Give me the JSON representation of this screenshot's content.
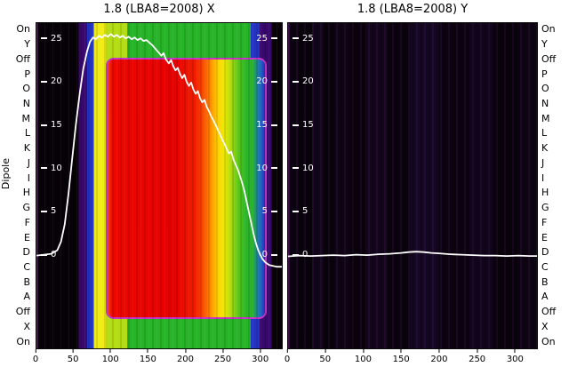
{
  "figure": {
    "y_axis_label": "Dipole"
  },
  "chart_data": [
    {
      "type": "heatmap",
      "title": "1.8 (LBA8=2008) X",
      "x_range": [
        0,
        330
      ],
      "x_ticks": [
        0,
        50,
        100,
        150,
        200,
        250,
        300
      ],
      "y_ticks": [
        25,
        20,
        15,
        10,
        5,
        0
      ],
      "y_tick_sides": [
        "left",
        "right"
      ],
      "row_side": "left",
      "row_axis_label": "Dipole",
      "row_labels": [
        "On",
        "Y",
        "Off",
        "P",
        "O",
        "N",
        "M",
        "L",
        "K",
        "J",
        "I",
        "H",
        "G",
        "F",
        "E",
        "D",
        "C",
        "B",
        "A",
        "Off",
        "X",
        "On"
      ],
      "y_scale": {
        "zero_frac": 0.712,
        "unit_frac": 0.0266
      },
      "bands": [
        {
          "x0": 0,
          "x1": 2,
          "color": "#5a1068"
        },
        {
          "x0": 2,
          "x1": 57,
          "color": "#070108"
        },
        {
          "x0": 57,
          "x1": 68,
          "color": "#38086c"
        },
        {
          "x0": 68,
          "x1": 77,
          "color": "#2334c4"
        },
        {
          "x0": 77,
          "x1": 93,
          "color": "#f0ec18"
        },
        {
          "x0": 93,
          "x1": 122,
          "color": "#b4dc14"
        },
        {
          "x0": 122,
          "x1": 288,
          "color": "#28b428"
        },
        {
          "x0": 288,
          "x1": 300,
          "color": "#2334c4"
        },
        {
          "x0": 300,
          "x1": 316,
          "color": "#38086c"
        },
        {
          "x0": 316,
          "x1": 330,
          "color": "#070108"
        }
      ],
      "block": {
        "x0": 93,
        "x1": 305,
        "top_frac": 0.106,
        "bottom_frac": 0.899,
        "border_color": "#c832c8",
        "corner_radius": 9,
        "gradient": [
          [
            0,
            "#ff3c00"
          ],
          [
            3,
            "#ec0800"
          ],
          [
            42,
            "#e60000"
          ],
          [
            56,
            "#f01e00"
          ],
          [
            62,
            "#ff5a00"
          ],
          [
            66,
            "#ff9600"
          ],
          [
            70,
            "#ffd200"
          ],
          [
            74,
            "#f0e800"
          ],
          [
            78,
            "#b4dc14"
          ],
          [
            83,
            "#5ac814"
          ],
          [
            88,
            "#2db42d"
          ],
          [
            92,
            "#28b428"
          ],
          [
            96,
            "#1e78b4"
          ],
          [
            100,
            "#2334c4"
          ]
        ]
      },
      "line": {
        "color": "#ffffff",
        "points": [
          [
            0,
            -0.1
          ],
          [
            10,
            0
          ],
          [
            20,
            0.1
          ],
          [
            28,
            0.5
          ],
          [
            33,
            1.5
          ],
          [
            38,
            3.5
          ],
          [
            43,
            7
          ],
          [
            48,
            11
          ],
          [
            53,
            15
          ],
          [
            58,
            18.5
          ],
          [
            63,
            21.5
          ],
          [
            68,
            23.5
          ],
          [
            72,
            24.6
          ],
          [
            76,
            25.1
          ],
          [
            80,
            24.9
          ],
          [
            84,
            25.3
          ],
          [
            88,
            25.1
          ],
          [
            92,
            25.4
          ],
          [
            96,
            25.2
          ],
          [
            100,
            25.5
          ],
          [
            104,
            25.2
          ],
          [
            108,
            25.4
          ],
          [
            112,
            25.1
          ],
          [
            116,
            25.3
          ],
          [
            120,
            25.0
          ],
          [
            124,
            25.2
          ],
          [
            128,
            24.9
          ],
          [
            132,
            25.1
          ],
          [
            136,
            24.8
          ],
          [
            140,
            25.0
          ],
          [
            144,
            24.7
          ],
          [
            148,
            24.8
          ],
          [
            152,
            24.5
          ],
          [
            156,
            24.2
          ],
          [
            160,
            23.8
          ],
          [
            164,
            23.4
          ],
          [
            168,
            23.0
          ],
          [
            171,
            23.3
          ],
          [
            174,
            22.6
          ],
          [
            178,
            22.1
          ],
          [
            181,
            22.5
          ],
          [
            184,
            21.8
          ],
          [
            187,
            21.3
          ],
          [
            190,
            21.6
          ],
          [
            193,
            20.9
          ],
          [
            196,
            20.4
          ],
          [
            199,
            20.8
          ],
          [
            202,
            20.0
          ],
          [
            205,
            19.5
          ],
          [
            208,
            19.9
          ],
          [
            211,
            19.1
          ],
          [
            214,
            18.6
          ],
          [
            217,
            18.9
          ],
          [
            220,
            18.1
          ],
          [
            223,
            17.6
          ],
          [
            226,
            17.9
          ],
          [
            229,
            17.1
          ],
          [
            232,
            16.6
          ],
          [
            235,
            16.0
          ],
          [
            238,
            15.5
          ],
          [
            241,
            15.0
          ],
          [
            244,
            14.4
          ],
          [
            247,
            13.9
          ],
          [
            250,
            13.3
          ],
          [
            253,
            12.8
          ],
          [
            256,
            12.2
          ],
          [
            259,
            11.7
          ],
          [
            262,
            11.9
          ],
          [
            265,
            11.0
          ],
          [
            268,
            10.4
          ],
          [
            271,
            9.8
          ],
          [
            274,
            9.0
          ],
          [
            277,
            8.2
          ],
          [
            280,
            7.2
          ],
          [
            283,
            6.0
          ],
          [
            286,
            4.8
          ],
          [
            289,
            3.6
          ],
          [
            292,
            2.4
          ],
          [
            295,
            1.4
          ],
          [
            298,
            0.6
          ],
          [
            301,
            0.0
          ],
          [
            304,
            -0.5
          ],
          [
            308,
            -0.9
          ],
          [
            313,
            -1.2
          ],
          [
            318,
            -1.3
          ],
          [
            324,
            -1.4
          ],
          [
            330,
            -1.4
          ]
        ]
      }
    },
    {
      "type": "heatmap",
      "title": "1.8 (LBA8=2008) Y",
      "x_range": [
        0,
        330
      ],
      "x_ticks": [
        0,
        50,
        100,
        150,
        200,
        250,
        300
      ],
      "y_ticks": [
        25,
        20,
        15,
        10,
        5,
        0
      ],
      "y_tick_sides": [
        "left"
      ],
      "row_side": "right",
      "row_labels": [
        "On",
        "Y",
        "Off",
        "P",
        "O",
        "N",
        "M",
        "L",
        "K",
        "J",
        "I",
        "H",
        "G",
        "F",
        "E",
        "D",
        "C",
        "B",
        "A",
        "Off",
        "X",
        "On"
      ],
      "y_scale": {
        "zero_frac": 0.712,
        "unit_frac": 0.0266
      },
      "bands": [
        {
          "x0": 0,
          "x1": 2,
          "color": "#3c0a48"
        },
        {
          "x0": 2,
          "x1": 14,
          "color": "#0c0310"
        },
        {
          "x0": 14,
          "x1": 32,
          "color": "#08020a"
        },
        {
          "x0": 32,
          "x1": 47,
          "color": "#110519"
        },
        {
          "x0": 47,
          "x1": 62,
          "color": "#08020a"
        },
        {
          "x0": 62,
          "x1": 82,
          "color": "#0e0414"
        },
        {
          "x0": 82,
          "x1": 102,
          "color": "#09020c"
        },
        {
          "x0": 102,
          "x1": 132,
          "color": "#13061b"
        },
        {
          "x0": 132,
          "x1": 162,
          "color": "#0a030e"
        },
        {
          "x0": 162,
          "x1": 200,
          "color": "#150722"
        },
        {
          "x0": 200,
          "x1": 240,
          "color": "#0b030f"
        },
        {
          "x0": 240,
          "x1": 272,
          "color": "#10051a"
        },
        {
          "x0": 272,
          "x1": 302,
          "color": "#09020b"
        },
        {
          "x0": 302,
          "x1": 330,
          "color": "#0d0412"
        }
      ],
      "block": null,
      "line": {
        "color": "#ffffff",
        "points": [
          [
            0,
            -0.2
          ],
          [
            15,
            -0.1
          ],
          [
            30,
            -0.15
          ],
          [
            45,
            -0.1
          ],
          [
            60,
            -0.05
          ],
          [
            75,
            -0.1
          ],
          [
            90,
            0
          ],
          [
            105,
            -0.05
          ],
          [
            120,
            0.05
          ],
          [
            135,
            0.1
          ],
          [
            150,
            0.2
          ],
          [
            160,
            0.3
          ],
          [
            170,
            0.35
          ],
          [
            180,
            0.3
          ],
          [
            190,
            0.2
          ],
          [
            200,
            0.15
          ],
          [
            215,
            0.05
          ],
          [
            230,
            0
          ],
          [
            245,
            -0.05
          ],
          [
            260,
            -0.1
          ],
          [
            275,
            -0.1
          ],
          [
            290,
            -0.15
          ],
          [
            305,
            -0.1
          ],
          [
            320,
            -0.15
          ],
          [
            330,
            -0.15
          ]
        ]
      }
    }
  ]
}
